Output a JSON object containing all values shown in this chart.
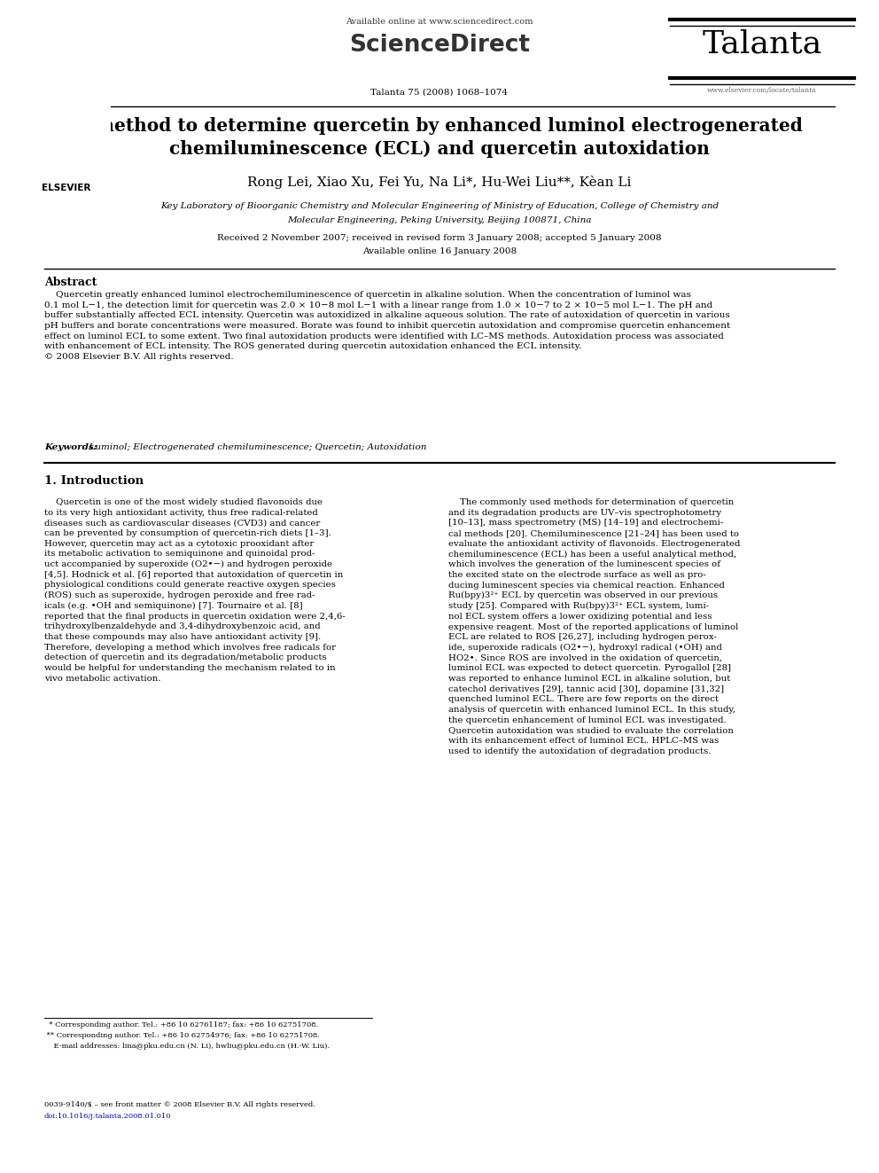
{
  "title_line1": "A method to determine quercetin by enhanced luminol electrogenerated",
  "title_line2": "chemiluminescence (ECL) and quercetin autoxidation",
  "authors": "Rong Lei, Xiao Xu, Fei Yu, Na Li*, Hu-Wei Liu**, Kèan Li",
  "affiliation1": "Key Laboratory of Bioorganic Chemistry and Molecular Engineering of Ministry of Education, College of Chemistry and",
  "affiliation2": "Molecular Engineering, Peking University, Beijing 100871, China",
  "received": "Received 2 November 2007; received in revised form 3 January 2008; accepted 5 January 2008",
  "available": "Available online 16 January 2008",
  "journal_info": "Talanta 75 (2008) 1068–1074",
  "journal_name": "Talanta",
  "elsevier": "ELSEVIER",
  "sciencedirect_text": "Available online at www.sciencedirect.com",
  "sciencedirect_logo": "ScienceDirect",
  "website": "www.elsevier.com/locate/talanta",
  "abstract_title": "Abstract",
  "abstract_text": "    Quercetin greatly enhanced luminol electrochemiluminescence of quercetin in alkaline solution. When the concentration of luminol was\n0.1 mol L−1, the detection limit for quercetin was 2.0 × 10−8 mol L−1 with a linear range from 1.0 × 10−7 to 2 × 10−5 mol L−1. The pH and\nbuffer substantially affected ECL intensity. Quercetin was autoxidized in alkaline aqueous solution. The rate of autoxidation of quercetin in various\npH buffers and borate concentrations were measured. Borate was found to inhibit quercetin autoxidation and compromise quercetin enhancement\neffect on luminol ECL to some extent. Two final autoxidation products were identified with LC–MS methods. Autoxidation process was associated\nwith enhancement of ECL intensity. The ROS generated during quercetin autoxidation enhanced the ECL intensity.\n© 2008 Elsevier B.V. All rights reserved.",
  "keywords_label": "Keywords:",
  "keywords_text": "  Luminol; Electrogenerated chemiluminescence; Quercetin; Autoxidation",
  "section1_title": "1. Introduction",
  "intro_col1": "    Quercetin is one of the most widely studied flavonoids due\nto its very high antioxidant activity, thus free radical-related\ndiseases such as cardiovascular diseases (CVD3) and cancer\ncan be prevented by consumption of quercetin-rich diets [1–3].\nHowever, quercetin may act as a cytotoxic prooxidant after\nits metabolic activation to semiquinone and quinoidal prod-\nuct accompanied by superoxide (O2•−) and hydrogen peroxide\n[4,5]. Hodnick et al. [6] reported that autoxidation of quercetin in\nphysiological conditions could generate reactive oxygen species\n(ROS) such as superoxide, hydrogen peroxide and free rad-\nicals (e.g. •OH and semiquinone) [7]. Tournaire et al. [8]\nreported that the final products in quercetin oxidation were 2,4,6-\ntrihydroxylbenzaldehyde and 3,4-dihydroxybenzoic acid, and\nthat these compounds may also have antioxidant activity [9].\nTherefore, developing a method which involves free radicals for\ndetection of quercetin and its degradation/metabolic products\nwould be helpful for understanding the mechanism related to in\nvivo metabolic activation.",
  "intro_col2": "    The commonly used methods for determination of quercetin\nand its degradation products are UV–vis spectrophotometry\n[10–13], mass spectrometry (MS) [14–19] and electrochemi-\ncal methods [20]. Chemiluminescence [21–24] has been used to\nevaluate the antioxidant activity of flavonoids. Electrogenerated\nchemiluminescence (ECL) has been a useful analytical method,\nwhich involves the generation of the luminescent species of\nthe excited state on the electrode surface as well as pro-\nducing luminescent species via chemical reaction. Enhanced\nRu(bpy)3²⁺ ECL by quercetin was observed in our previous\nstudy [25]. Compared with Ru(bpy)3²⁺ ECL system, lumi-\nnol ECL system offers a lower oxidizing potential and less\nexpensive reagent. Most of the reported applications of luminol\nECL are related to ROS [26,27], including hydrogen perox-\nide, superoxide radicals (O2•−), hydroxyl radical (•OH) and\nHO2•. Since ROS are involved in the oxidation of quercetin,\nluminol ECL was expected to detect quercetin. Pyrogallol [28]\nwas reported to enhance luminol ECL in alkaline solution, but\ncatechol derivatives [29], tannic acid [30], dopamine [31,32]\nquenched luminol ECL. There are few reports on the direct\nanalysis of quercetin with enhanced luminol ECL. In this study,\nthe quercetin enhancement of luminol ECL was investigated.\nQuercetin autoxidation was studied to evaluate the correlation\nwith its enhancement effect of luminol ECL. HPLC–MS was\nused to identify the autoxidation of degradation products.",
  "footnote1": "  * Corresponding author. Tel.: +86 10 62761187; fax: +86 10 62751708.",
  "footnote2": " ** Corresponding author. Tel.: +86 10 62754976; fax: +86 10 62751708.",
  "footnote3": "    E-mail addresses: lina@pku.edu.cn (N. Li), hwliu@pku.edu.cn (H.-W. Liu).",
  "footer_left": "0039-9140/$ – see front matter © 2008 Elsevier B.V. All rights reserved.",
  "footer_doi": "doi:10.1016/j.talanta.2008.01.010",
  "background_color": "#ffffff",
  "text_color": "#000000",
  "blue_color": "#0000cc"
}
